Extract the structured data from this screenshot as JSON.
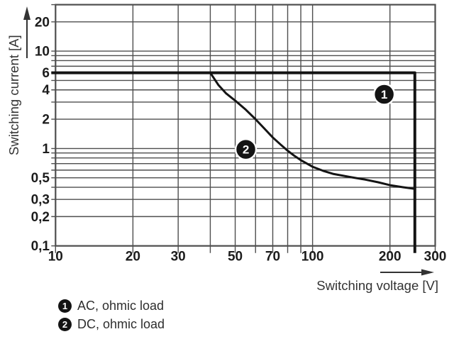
{
  "chart": {
    "y_axis_title": "Switching current [A]",
    "x_axis_title": "Switching voltage [V]"
  },
  "legend": {
    "items": [
      {
        "marker": "1",
        "label": "AC, ohmic load"
      },
      {
        "marker": "2",
        "label": "DC, ohmic load"
      }
    ]
  },
  "chart_data": {
    "type": "line",
    "title": "",
    "xlabel": "Switching voltage [V]",
    "ylabel": "Switching current [A]",
    "x_scale": "log",
    "y_scale": "log",
    "xlim": [
      10,
      300
    ],
    "ylim": [
      0.1,
      30
    ],
    "grid": true,
    "legend_position": "below-left",
    "x_gridlines": [
      10,
      20,
      30,
      40,
      50,
      60,
      70,
      80,
      90,
      100,
      200,
      300
    ],
    "y_gridlines": [
      0.1,
      0.2,
      0.3,
      0.4,
      0.5,
      0.6,
      0.7,
      0.8,
      0.9,
      1,
      2,
      3,
      4,
      5,
      6,
      7,
      8,
      9,
      10,
      20,
      30
    ],
    "x_ticks": [
      {
        "v": 10,
        "label": "10"
      },
      {
        "v": 20,
        "label": "20"
      },
      {
        "v": 30,
        "label": "30"
      },
      {
        "v": 50,
        "label": "50"
      },
      {
        "v": 70,
        "label": "70"
      },
      {
        "v": 100,
        "label": "100"
      },
      {
        "v": 200,
        "label": "200"
      },
      {
        "v": 300,
        "label": "300"
      }
    ],
    "y_ticks": [
      {
        "v": 20,
        "label": "20"
      },
      {
        "v": 10,
        "label": "10"
      },
      {
        "v": 6,
        "label": "6"
      },
      {
        "v": 4,
        "label": "4"
      },
      {
        "v": 2,
        "label": "2"
      },
      {
        "v": 1,
        "label": "1"
      },
      {
        "v": 0.5,
        "label": "0,5"
      },
      {
        "v": 0.3,
        "label": "0,3"
      },
      {
        "v": 0.2,
        "label": "0,2"
      },
      {
        "v": 0.1,
        "label": "0,1"
      }
    ],
    "series": [
      {
        "name": "AC, ohmic load",
        "marker": "1",
        "points": [
          [
            10,
            6
          ],
          [
            250,
            6
          ],
          [
            250,
            0.1
          ]
        ]
      },
      {
        "name": "DC, ohmic load",
        "marker": "2",
        "points": [
          [
            40,
            6.0
          ],
          [
            43,
            4.5
          ],
          [
            46,
            3.7
          ],
          [
            50,
            3.1
          ],
          [
            55,
            2.5
          ],
          [
            60,
            2.0
          ],
          [
            65,
            1.6
          ],
          [
            70,
            1.3
          ],
          [
            75,
            1.1
          ],
          [
            80,
            0.95
          ],
          [
            85,
            0.84
          ],
          [
            90,
            0.76
          ],
          [
            100,
            0.65
          ],
          [
            110,
            0.59
          ],
          [
            120,
            0.55
          ],
          [
            140,
            0.51
          ],
          [
            160,
            0.48
          ],
          [
            180,
            0.45
          ],
          [
            200,
            0.42
          ],
          [
            225,
            0.4
          ],
          [
            250,
            0.385
          ]
        ]
      }
    ],
    "curve_markers": [
      {
        "label": "1",
        "series": "AC, ohmic load",
        "v": 190,
        "a": 3.6
      },
      {
        "label": "2",
        "series": "DC, ohmic load",
        "v": 55,
        "a": 0.98
      }
    ]
  }
}
